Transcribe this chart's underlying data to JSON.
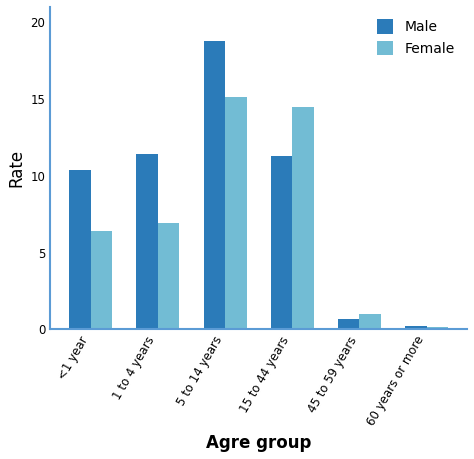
{
  "categories": [
    "<1 year",
    "1 to 4 years",
    "5 to 14 years",
    "15 to 44 years",
    "45 to 59 years",
    "60 years or more"
  ],
  "male_values": [
    10.4,
    11.4,
    18.8,
    11.3,
    0.65,
    0.2
  ],
  "female_values": [
    6.4,
    6.9,
    15.1,
    14.5,
    1.0,
    0.15
  ],
  "male_color": "#2b7bb9",
  "female_color": "#72bcd4",
  "xlabel": "Agre group",
  "ylabel": "Rate",
  "ylim": [
    0,
    21
  ],
  "yticks": [
    0,
    5,
    10,
    15,
    20
  ],
  "legend_labels": [
    "Male",
    "Female"
  ],
  "bar_width": 0.32,
  "background_color": "#ffffff",
  "tick_label_fontsize": 8.5,
  "axis_label_fontsize": 12,
  "legend_fontsize": 10,
  "spine_color": "#5b9bd5"
}
